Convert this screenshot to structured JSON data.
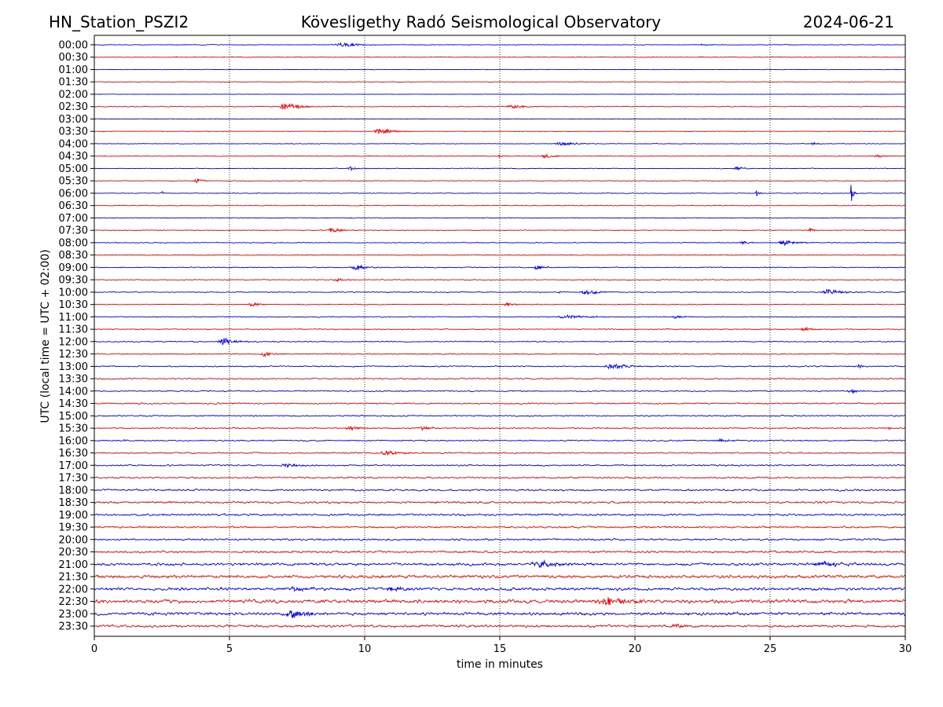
{
  "chart_data": {
    "type": "line",
    "title_left": "HN_Station_PSZI2",
    "title": "Kövesligethy Radó Seismological Observatory",
    "title_right": "2024-06-21",
    "xlabel": "time in minutes",
    "ylabel": "UTC (local time = UTC + 02:00)",
    "xlim": [
      0,
      30
    ],
    "xticks": [
      "0",
      "5",
      "10",
      "15",
      "20",
      "25",
      "30"
    ],
    "grid": "vertical dotted at 5-minute ticks",
    "colors": [
      "#0000ff",
      "#ff0000"
    ],
    "rows": [
      "00:00",
      "00:30",
      "01:00",
      "01:30",
      "02:00",
      "02:30",
      "03:00",
      "03:30",
      "04:00",
      "04:30",
      "05:00",
      "05:30",
      "06:00",
      "06:30",
      "07:00",
      "07:30",
      "08:00",
      "08:30",
      "09:00",
      "09:30",
      "10:00",
      "10:30",
      "11:00",
      "11:30",
      "12:00",
      "12:30",
      "13:00",
      "13:30",
      "14:00",
      "14:30",
      "15:00",
      "15:30",
      "16:00",
      "16:30",
      "17:00",
      "17:30",
      "18:00",
      "18:30",
      "19:00",
      "19:30",
      "20:00",
      "20:30",
      "21:00",
      "21:30",
      "22:00",
      "22:30",
      "23:00",
      "23:30"
    ],
    "noise_level": [
      0.5,
      0.4,
      0.4,
      0.4,
      0.3,
      0.5,
      0.4,
      0.4,
      0.5,
      0.5,
      0.5,
      0.5,
      0.5,
      0.5,
      0.5,
      0.6,
      0.6,
      0.6,
      0.7,
      0.6,
      0.7,
      0.6,
      0.7,
      0.7,
      0.8,
      0.8,
      0.9,
      0.9,
      0.9,
      1.0,
      1.0,
      1.0,
      1.0,
      1.0,
      1.1,
      1.1,
      1.4,
      1.5,
      1.5,
      1.3,
      1.4,
      1.5,
      2.0,
      2.2,
      2.2,
      2.6,
      2.2,
      1.8
    ],
    "events": [
      [
        0,
        9.2,
        1.5,
        1.5
      ],
      [
        0,
        22.5,
        1,
        0.5
      ],
      [
        5,
        7.1,
        3,
        1.2
      ],
      [
        5,
        15.5,
        1.5,
        1
      ],
      [
        7,
        10.6,
        3,
        1
      ],
      [
        8,
        17.3,
        2,
        1
      ],
      [
        8,
        26.6,
        1.2,
        0.4
      ],
      [
        9,
        16.7,
        2,
        0.6
      ],
      [
        9,
        15,
        1,
        0.3
      ],
      [
        9,
        29,
        1.5,
        0.6
      ],
      [
        10,
        9.5,
        1.5,
        0.6
      ],
      [
        10,
        23.8,
        1.5,
        0.6
      ],
      [
        11,
        3.8,
        2,
        0.5
      ],
      [
        12,
        2.5,
        2,
        0.1
      ],
      [
        12,
        24.5,
        3,
        0.2
      ],
      [
        12,
        28,
        8,
        0.2
      ],
      [
        15,
        8.8,
        2,
        0.8
      ],
      [
        15,
        26.5,
        2,
        0.3
      ],
      [
        16,
        25.5,
        2,
        1
      ],
      [
        16,
        24,
        1.5,
        0.6
      ],
      [
        18,
        9.7,
        2.5,
        0.8
      ],
      [
        18,
        16.4,
        2,
        0.6
      ],
      [
        19,
        9,
        1.5,
        0.6
      ],
      [
        20,
        18.2,
        2,
        1
      ],
      [
        20,
        27.2,
        2.5,
        1.2
      ],
      [
        20,
        17.2,
        2.5,
        0.1
      ],
      [
        21,
        5.8,
        2,
        0.6
      ],
      [
        21,
        15.3,
        1.5,
        0.6
      ],
      [
        22,
        17.5,
        1.5,
        1.5
      ],
      [
        22,
        21.5,
        1.5,
        0.6
      ],
      [
        23,
        26.3,
        1.5,
        0.8
      ],
      [
        24,
        4.8,
        3,
        1
      ],
      [
        25,
        6.3,
        2,
        0.6
      ],
      [
        26,
        19.2,
        2.5,
        1.2
      ],
      [
        26,
        28.3,
        2.5,
        0.2
      ],
      [
        28,
        28,
        1.5,
        0.6
      ],
      [
        31,
        9.5,
        1.5,
        0.8
      ],
      [
        31,
        12.2,
        1.5,
        0.8
      ],
      [
        31,
        29.4,
        2,
        0.1
      ],
      [
        32,
        1.1,
        2.5,
        0.1
      ],
      [
        32,
        23.2,
        1,
        1
      ],
      [
        33,
        10.8,
        2,
        1
      ],
      [
        34,
        7.1,
        1.5,
        1
      ],
      [
        42,
        16.5,
        3,
        1.5
      ],
      [
        42,
        27,
        2,
        1.5
      ],
      [
        44,
        7.5,
        2,
        1
      ],
      [
        44,
        11,
        2,
        1
      ],
      [
        45,
        19,
        3,
        1.5
      ],
      [
        46,
        7.3,
        3,
        1.5
      ],
      [
        47,
        21.5,
        2,
        0.6
      ]
    ]
  }
}
